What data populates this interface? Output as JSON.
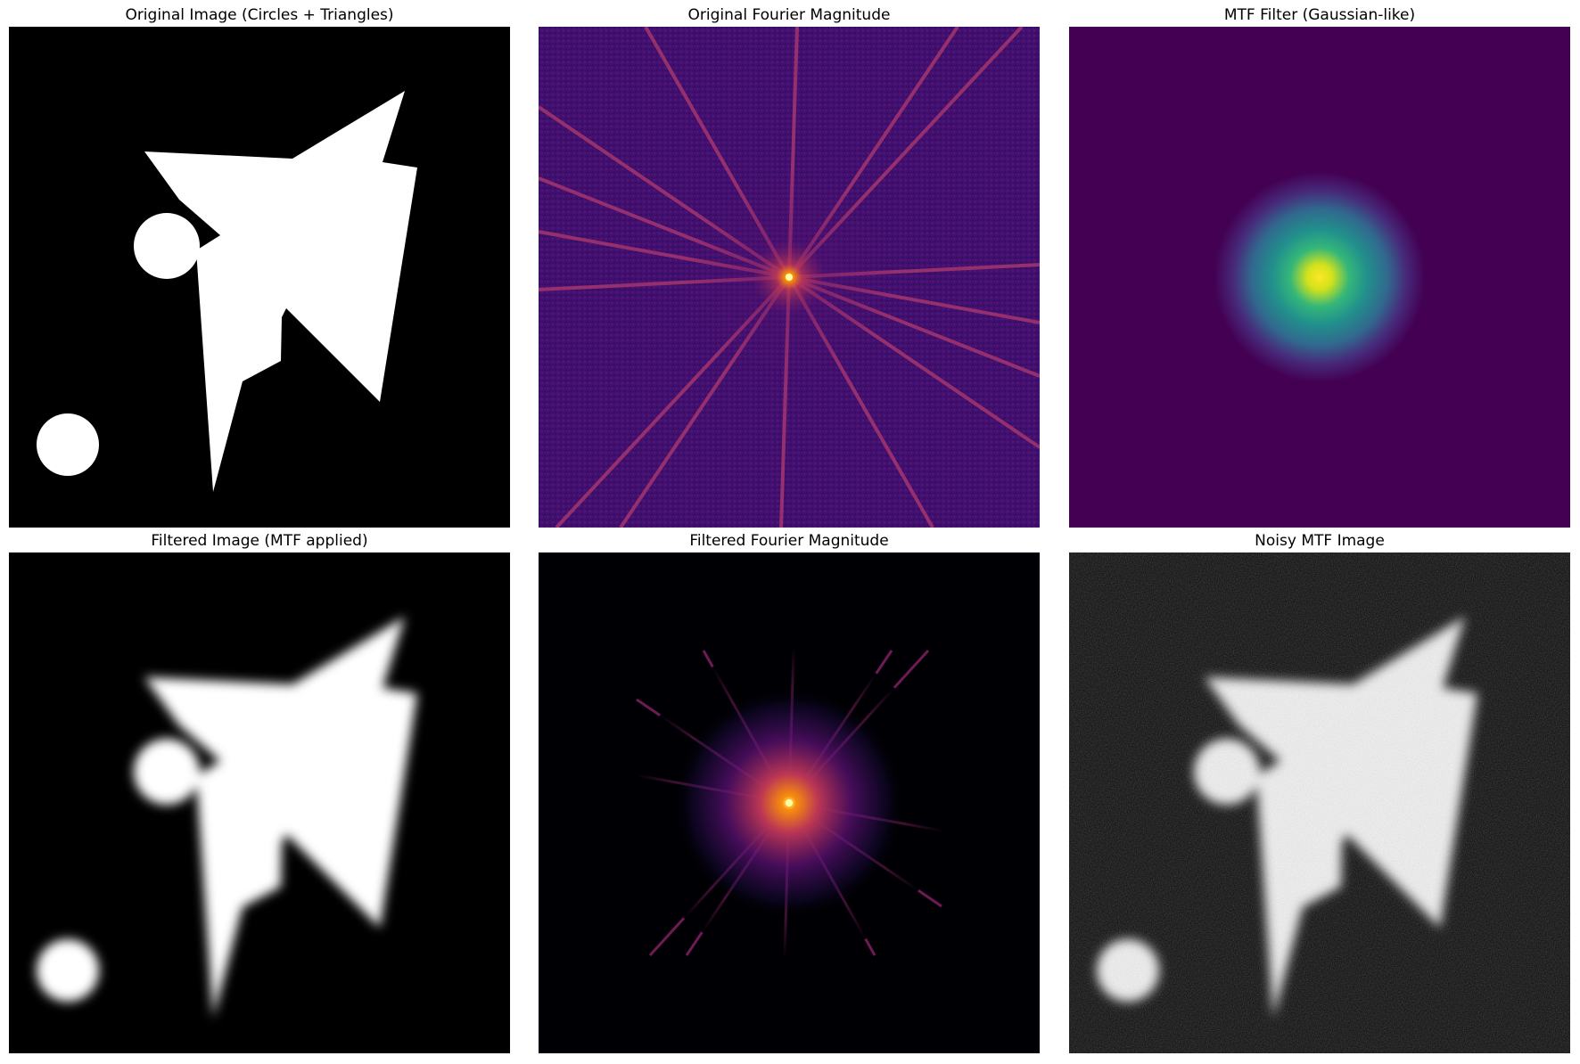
{
  "panels": [
    {
      "title": "Original Image (Circles + Triangles)"
    },
    {
      "title": "Original Fourier Magnitude"
    },
    {
      "title": "MTF Filter (Gaussian-like)"
    },
    {
      "title": "Filtered Image (MTF applied)"
    },
    {
      "title": "Filtered Fourier Magnitude"
    },
    {
      "title": "Noisy MTF Image"
    }
  ],
  "colors": {
    "background": "#000000",
    "shape": "#ffffff",
    "viridis_low": "#440154",
    "viridis_mid": "#21918c",
    "viridis_high": "#fde725",
    "inferno_dark": "#000004",
    "inferno_purple": "#57106e",
    "inferno_orange": "#f98e09",
    "inferno_peak": "#fcffa4"
  }
}
